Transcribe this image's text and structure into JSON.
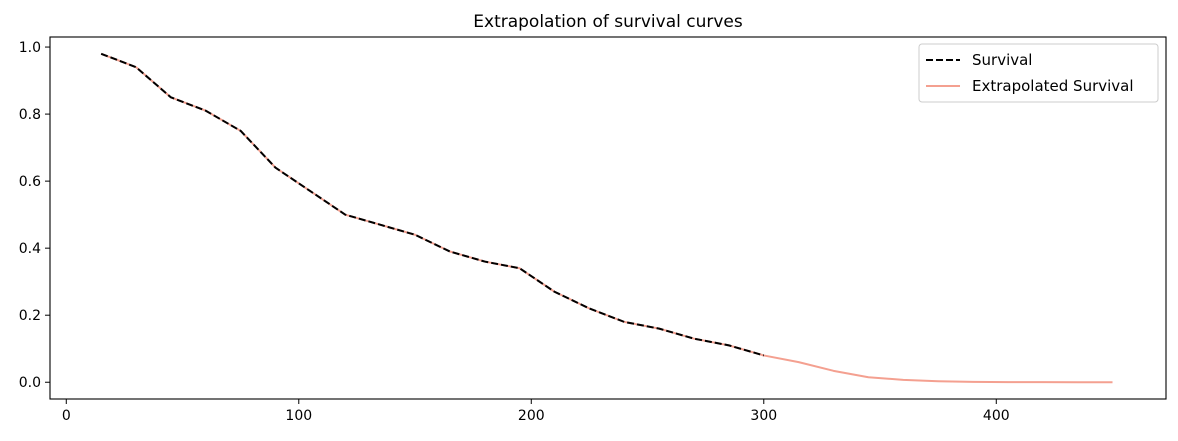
{
  "chart_data": {
    "type": "line",
    "title": "Extrapolation of survival curves",
    "xlabel": "",
    "ylabel": "",
    "xlim": [
      -7,
      473
    ],
    "ylim": [
      -0.05,
      1.03
    ],
    "xticks": [
      0,
      100,
      200,
      300,
      400
    ],
    "xtick_labels": [
      "0",
      "100",
      "200",
      "300",
      "400"
    ],
    "yticks": [
      0.0,
      0.2,
      0.4,
      0.6,
      0.8,
      1.0
    ],
    "ytick_labels": [
      "0.0",
      "0.2",
      "0.4",
      "0.6",
      "0.8",
      "1.0"
    ],
    "grid": false,
    "legend_position": "top-right",
    "series": [
      {
        "name": "Survival",
        "color": "#000000",
        "style": "dashed",
        "x": [
          15,
          30,
          45,
          60,
          75,
          90,
          105,
          120,
          135,
          150,
          165,
          180,
          195,
          210,
          225,
          240,
          255,
          270,
          285,
          300
        ],
        "y": [
          0.98,
          0.94,
          0.85,
          0.81,
          0.75,
          0.64,
          0.57,
          0.5,
          0.47,
          0.44,
          0.39,
          0.36,
          0.34,
          0.27,
          0.22,
          0.18,
          0.16,
          0.13,
          0.11,
          0.08
        ]
      },
      {
        "name": "Extrapolated Survival",
        "color": "#f4a090",
        "style": "solid",
        "x": [
          15,
          30,
          45,
          60,
          75,
          90,
          105,
          120,
          135,
          150,
          165,
          180,
          195,
          210,
          225,
          240,
          255,
          270,
          285,
          300,
          315,
          330,
          345,
          360,
          375,
          390,
          405,
          420,
          435,
          450
        ],
        "y": [
          0.98,
          0.94,
          0.85,
          0.81,
          0.75,
          0.64,
          0.57,
          0.5,
          0.47,
          0.44,
          0.39,
          0.36,
          0.34,
          0.27,
          0.22,
          0.18,
          0.16,
          0.13,
          0.11,
          0.08,
          0.06,
          0.034,
          0.015,
          0.007,
          0.003,
          0.001,
          0.0005,
          0.0002,
          0.0001,
          0.0
        ]
      }
    ]
  }
}
